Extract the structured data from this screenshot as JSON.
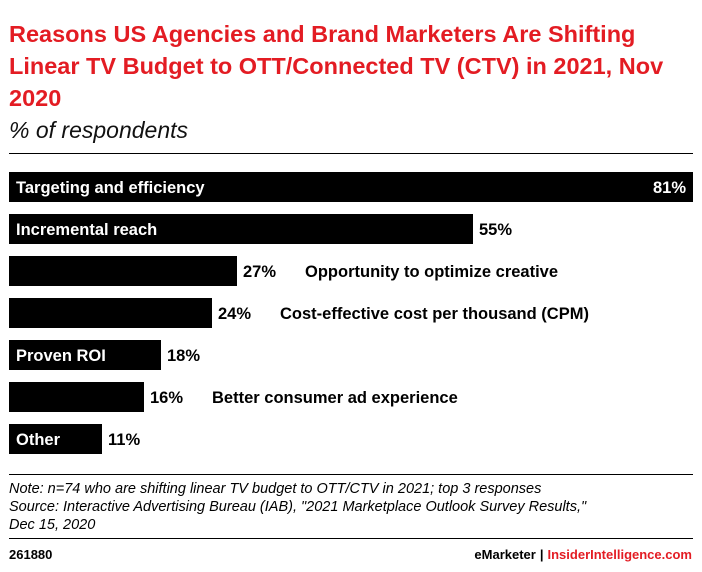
{
  "title": "Reasons US Agencies and Brand Marketers Are Shifting Linear TV Budget to OTT/Connected TV (CTV) in 2021, Nov 2020",
  "subtitle": "% of respondents",
  "chart_data": {
    "type": "bar",
    "orientation": "horizontal",
    "categories": [
      "Targeting and efficiency",
      "Incremental reach",
      "Opportunity to optimize creative",
      "Cost-effective cost per thousand (CPM)",
      "Proven ROI",
      "Better consumer ad experience",
      "Other"
    ],
    "values": [
      81,
      55,
      27,
      24,
      18,
      16,
      11
    ],
    "value_labels": [
      "81%",
      "55%",
      "27%",
      "24%",
      "18%",
      "16%",
      "11%"
    ],
    "label_inside": [
      true,
      true,
      false,
      false,
      true,
      false,
      true
    ],
    "xlim": [
      0,
      81
    ],
    "bar_color": "#000000",
    "grid": false
  },
  "note": [
    "Note: n=74 who are shifting linear TV budget to OTT/CTV in 2021; top 3 responses",
    "Source: Interactive Advertising Bureau (IAB), \"2021 Marketplace Outlook Survey Results,\"",
    "Dec 15, 2020"
  ],
  "footer": {
    "chart_id": "261880",
    "brand_left": "eMarketer",
    "separator": "|",
    "brand_right": "InsiderIntelligence.com"
  },
  "colors": {
    "accent": "#e31c23",
    "bar": "#000000",
    "text": "#000000"
  }
}
